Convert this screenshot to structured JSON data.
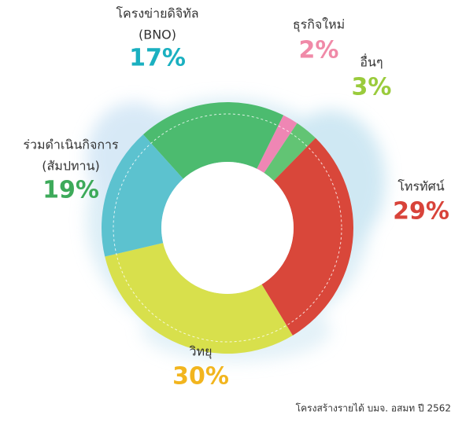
{
  "chart_data": {
    "type": "donut",
    "categories": [
      [
        "ร่วมดำเนินกิจการ",
        "(สัมปทาน)"
      ],
      [
        "ธุรกิจใหม่"
      ],
      [
        "อื่นๆ"
      ],
      [
        "โทรทัศน์"
      ],
      [
        "วิทยุ"
      ],
      [
        "โครงข่ายดิจิทัล",
        "(BNO)"
      ]
    ],
    "values": [
      19,
      2,
      3,
      29,
      30,
      17
    ],
    "value_labels": [
      "19%",
      "2%",
      "3%",
      "29%",
      "30%",
      "17%"
    ],
    "colors": [
      "#4cbb6f",
      "#ef86b4",
      "#62c474",
      "#d9473a",
      "#d8e04c",
      "#5cc2cf"
    ],
    "label_colors": [
      "#3daa5a",
      "#f08aa8",
      "#9acb3c",
      "#d8433a",
      "#f2b51e",
      "#1ab0c0"
    ],
    "footnote": "โครงสร้างรายได้ บมจ. อสมท ปี 2562"
  }
}
